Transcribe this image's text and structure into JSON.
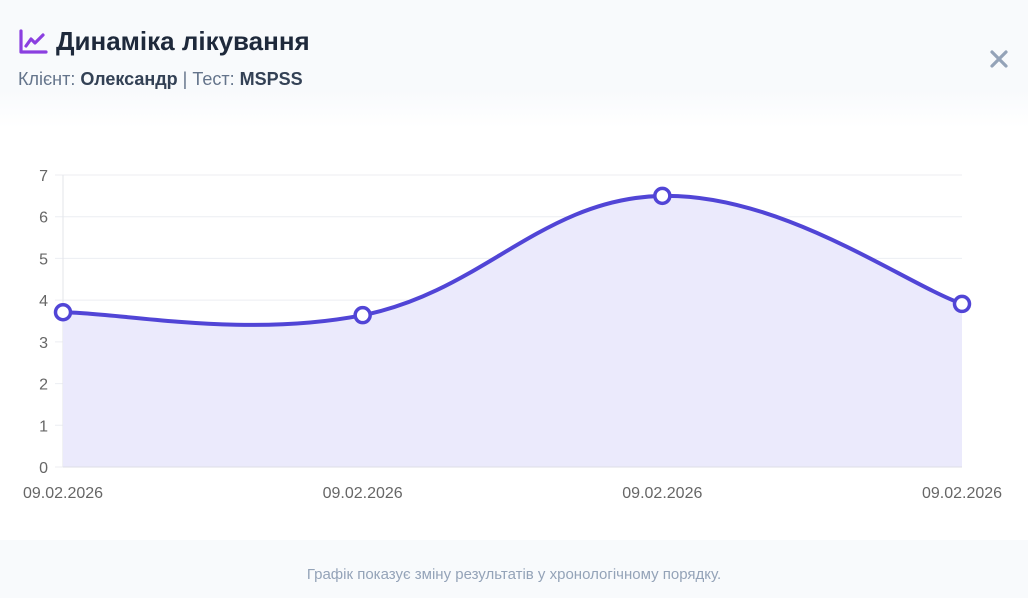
{
  "header": {
    "title": "Динаміка лікування",
    "title_icon": "chart-line-icon",
    "client_label": "Клієнт:",
    "client_name": "Олександр",
    "separator": "|",
    "test_label": "Тест:",
    "test_name": "MSPSS",
    "close_icon": "close-icon"
  },
  "footer": {
    "note": "Графік показує зміну результатів у хронологічному порядку."
  },
  "colors": {
    "accent": "#5145d6",
    "icon": "#8b3fe0",
    "fill": "#ebeafc",
    "grid": "#eceef2",
    "axis_text": "#666666"
  },
  "chart_data": {
    "type": "line",
    "title": "Динаміка лікування",
    "xlabel": "",
    "ylabel": "",
    "categories": [
      "09.02.2026",
      "09.02.2026",
      "09.02.2026",
      "09.02.2026"
    ],
    "series": [
      {
        "name": "MSPSS",
        "values": [
          3.71,
          3.64,
          6.5,
          3.91
        ]
      }
    ],
    "ylim": [
      0,
      7
    ],
    "yticks": [
      0,
      1,
      2,
      3,
      4,
      5,
      6,
      7
    ],
    "grid": true,
    "fill": true,
    "legend": "none"
  }
}
